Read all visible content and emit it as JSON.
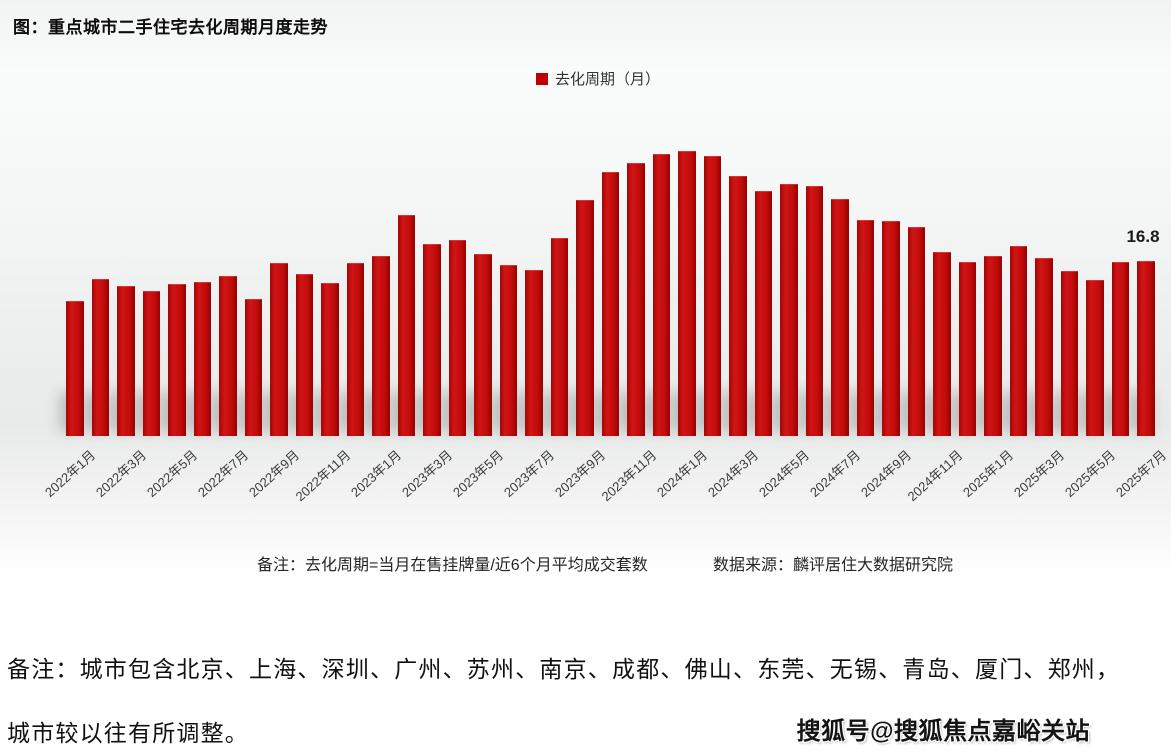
{
  "title": "图：重点城市二手住宅去化周期月度走势",
  "legend": {
    "label": "去化周期（月）",
    "color": "#c00000"
  },
  "chart_data": {
    "type": "bar",
    "title": "重点城市二手住宅去化周期月度走势",
    "series_name": "去化周期（月）",
    "bar_color": "#c00000",
    "grid": false,
    "legend_position": "top-center",
    "ylim": [
      0,
      30
    ],
    "x": [
      "2022年1月",
      "2022年2月",
      "2022年3月",
      "2022年4月",
      "2022年5月",
      "2022年6月",
      "2022年7月",
      "2022年8月",
      "2022年9月",
      "2022年10月",
      "2022年11月",
      "2022年12月",
      "2023年1月",
      "2023年2月",
      "2023年3月",
      "2023年4月",
      "2023年5月",
      "2023年6月",
      "2023年7月",
      "2023年8月",
      "2023年9月",
      "2023年10月",
      "2023年11月",
      "2023年12月",
      "2024年1月",
      "2024年2月",
      "2024年3月",
      "2024年4月",
      "2024年5月",
      "2024年6月",
      "2024年7月",
      "2024年8月",
      "2024年9月",
      "2024年10月",
      "2024年11月",
      "2024年12月",
      "2025年1月",
      "2025年2月",
      "2025年3月",
      "2025年4月",
      "2025年5月",
      "2025年6月",
      "2025年7月"
    ],
    "values": [
      13.0,
      15.1,
      14.4,
      13.9,
      14.6,
      14.8,
      15.4,
      13.2,
      16.6,
      15.6,
      14.7,
      16.6,
      17.3,
      21.2,
      18.4,
      18.8,
      17.5,
      16.4,
      15.9,
      19.0,
      22.7,
      25.3,
      26.2,
      27.1,
      27.4,
      26.9,
      25.0,
      23.5,
      24.2,
      24.0,
      22.8,
      20.7,
      20.6,
      20.1,
      17.7,
      16.7,
      17.3,
      18.2,
      17.1,
      15.8,
      15.0,
      16.7,
      16.8
    ],
    "x_tick_every": 2,
    "annotation": {
      "text": "16.8",
      "x": "2025年7月"
    }
  },
  "footnote": {
    "note": "备注：去化周期=当月在售挂牌量/近6个月平均成交套数",
    "source": "数据来源：麟评居住大数据研究院"
  },
  "remark": {
    "line1": "备注：城市包含北京、上海、深圳、广州、苏州、南京、成都、佛山、东莞、无锡、青岛、厦门、郑州，",
    "line2": "城市较以往有所调整。"
  },
  "watermark": "搜狐号@搜狐焦点嘉峪关站"
}
